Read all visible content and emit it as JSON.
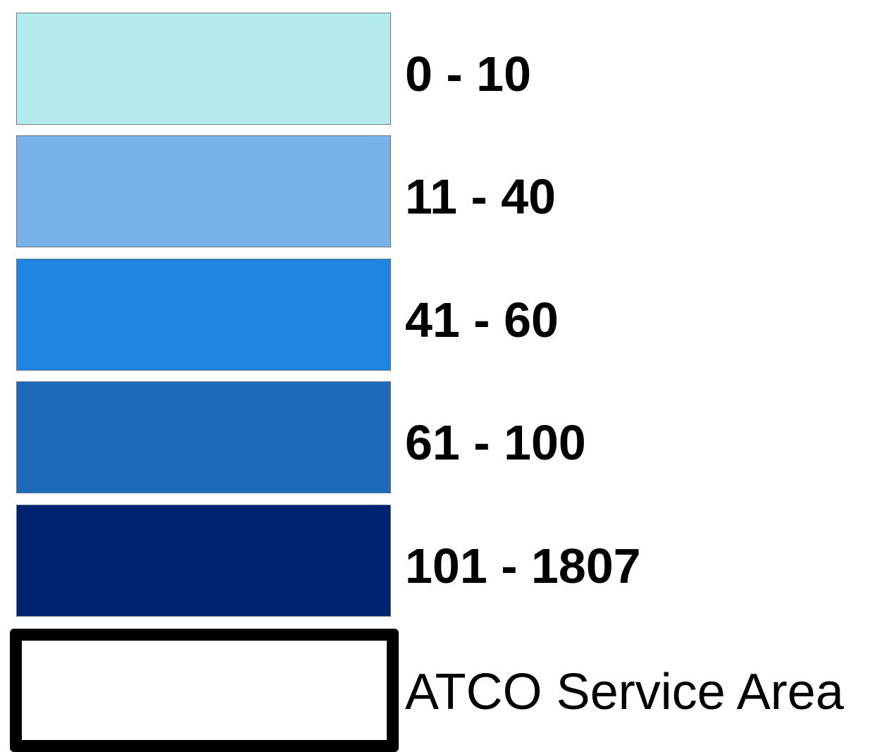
{
  "legend": {
    "classes": [
      {
        "label": "0 - 10",
        "color": "#b4ecee"
      },
      {
        "label": "11 - 40",
        "color": "#76b2e8"
      },
      {
        "label": "41 - 60",
        "color": "#1f85e0"
      },
      {
        "label": "61 - 100",
        "color": "#1f6ab8"
      },
      {
        "label": "101 - 1807",
        "color": "#00236f"
      }
    ],
    "boundary": {
      "label": "ATCO Service Area",
      "stroke_color": "#000000"
    }
  }
}
